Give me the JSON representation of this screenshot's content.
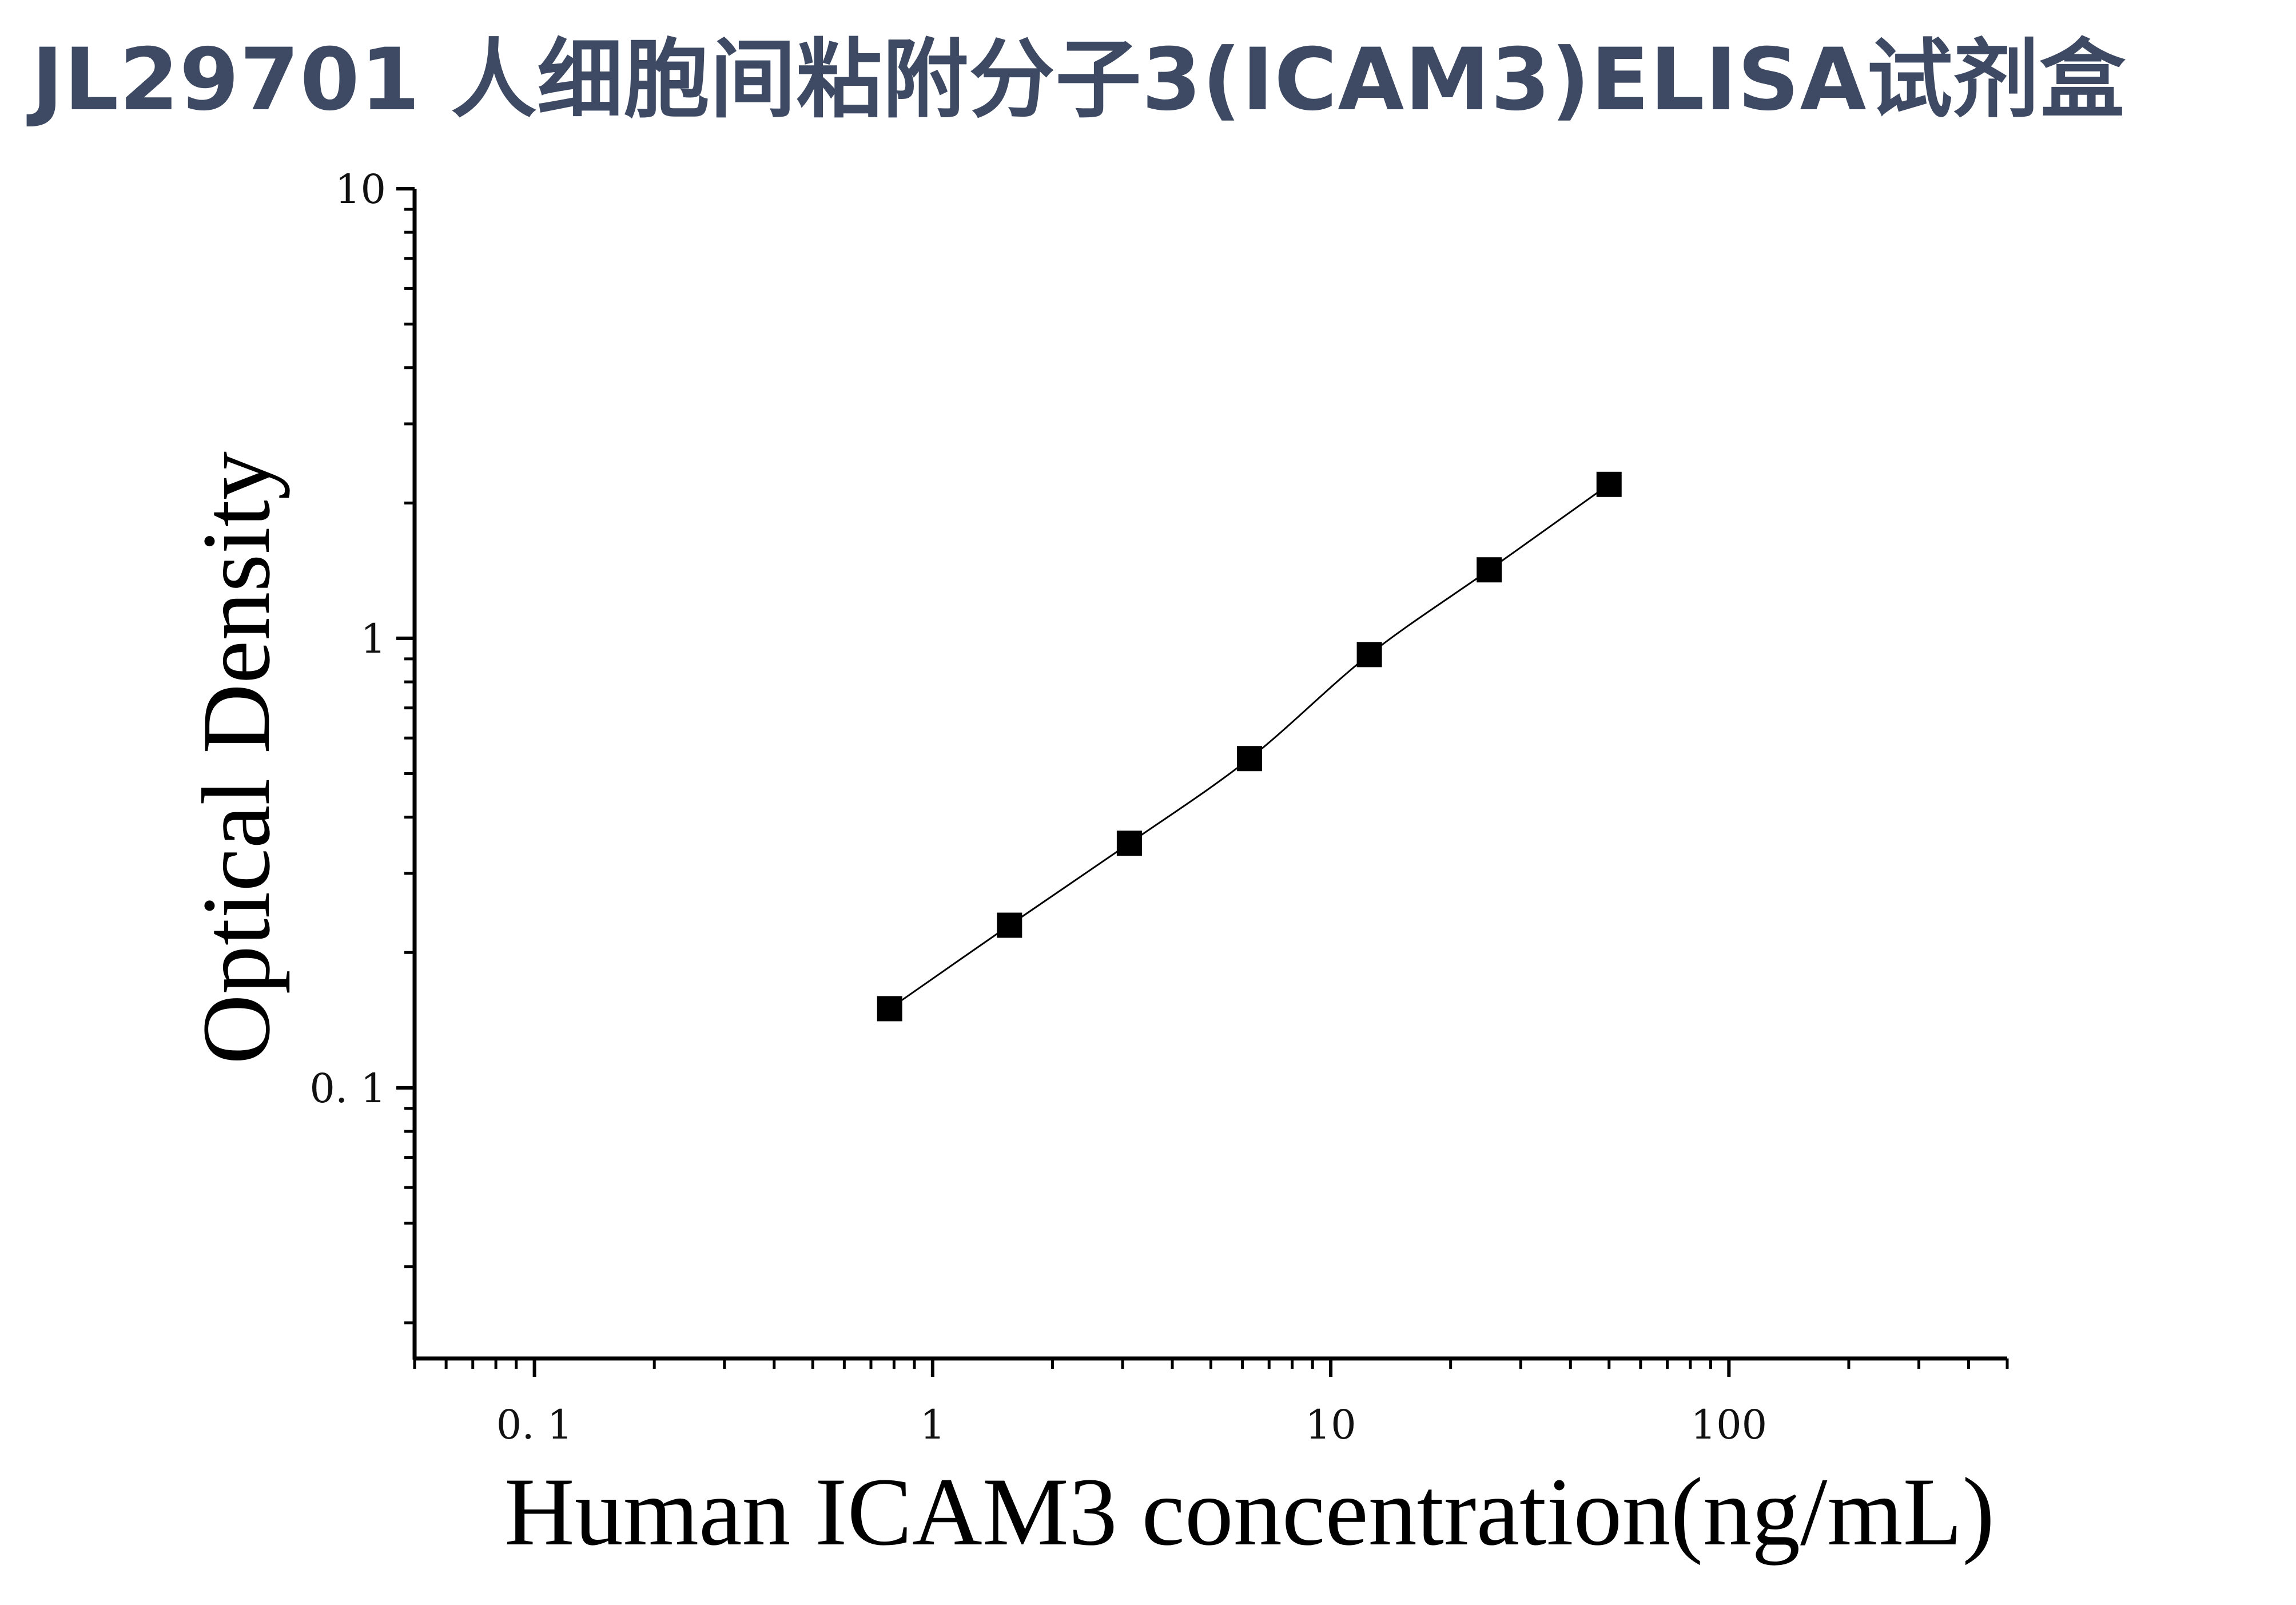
{
  "title": "JL29701 人细胞间粘附分子3(ICAM3)ELISA试剂盒",
  "chart_data": {
    "type": "scatter",
    "title": "JL29701 人细胞间粘附分子3(ICAM3)ELISA试剂盒",
    "xlabel": "Human ICAM3 concentration(ng/mL)",
    "ylabel": "Optical Density",
    "x_scale": "log",
    "y_scale": "log",
    "xlim": [
      0.05,
      500
    ],
    "ylim": [
      0.025,
      10
    ],
    "x_ticks": [
      {
        "value": 0.1,
        "label": "0. 1"
      },
      {
        "value": 1,
        "label": "1"
      },
      {
        "value": 10,
        "label": "10"
      },
      {
        "value": 100,
        "label": "100"
      }
    ],
    "y_ticks": [
      {
        "value": 0.1,
        "label": "0. 1"
      },
      {
        "value": 1,
        "label": "1"
      },
      {
        "value": 10,
        "label": "10"
      }
    ],
    "grid": false,
    "legend": "none",
    "marker": "square",
    "series": [
      {
        "x": [
          0.78,
          1.56,
          3.12,
          6.25,
          12.5,
          25,
          50
        ],
        "y": [
          0.15,
          0.23,
          0.35,
          0.54,
          0.92,
          1.42,
          2.2
        ]
      }
    ],
    "fit_line": true,
    "colors": {
      "marker": "#000000",
      "line": "#000000",
      "axis": "#000000"
    }
  }
}
